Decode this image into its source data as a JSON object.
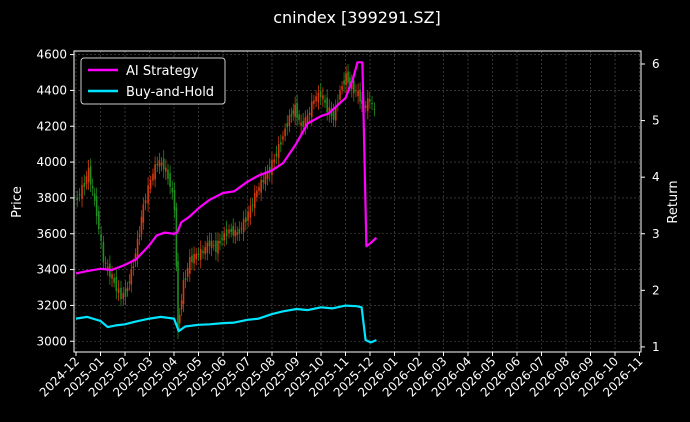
{
  "chart_data": {
    "type": "line",
    "title": "cnindex [399291.SZ]",
    "left_axis": {
      "label": "Price",
      "ylim": [
        2940,
        4620
      ],
      "ticks": [
        3000,
        3200,
        3400,
        3600,
        3800,
        4000,
        4200,
        4400,
        4600
      ]
    },
    "right_axis": {
      "label": "Return",
      "ylim": [
        0.91,
        6.23
      ],
      "ticks": [
        1,
        2,
        3,
        4,
        5,
        6
      ]
    },
    "x_axis": {
      "ticks": [
        "2024-12",
        "2025-01",
        "2025-02",
        "2025-03",
        "2025-04",
        "2025-05",
        "2025-06",
        "2025-07",
        "2025-08",
        "2025-09",
        "2025-10",
        "2025-11",
        "2025-12",
        "2026-01",
        "2026-02",
        "2026-03",
        "2026-04",
        "2026-05",
        "2026-06",
        "2026-07",
        "2026-08",
        "2026-09",
        "2026-10",
        "2026-11"
      ]
    },
    "grid": true,
    "legend_position": "top-left",
    "price_candles": {
      "axis": "left",
      "up_color": "#d43a10",
      "down_color": "#1f8f1f",
      "points": [
        [
          "2024-12-01",
          3780
        ],
        [
          "2024-12-10",
          3850
        ],
        [
          "2024-12-18",
          3950
        ],
        [
          "2024-12-28",
          3720
        ],
        [
          "2025-01-06",
          3450
        ],
        [
          "2025-01-14",
          3380
        ],
        [
          "2025-01-22",
          3300
        ],
        [
          "2025-01-28",
          3250
        ],
        [
          "2025-02-03",
          3270
        ],
        [
          "2025-02-10",
          3380
        ],
        [
          "2025-02-18",
          3550
        ],
        [
          "2025-02-25",
          3750
        ],
        [
          "2025-03-04",
          3900
        ],
        [
          "2025-03-12",
          4000
        ],
        [
          "2025-03-20",
          3980
        ],
        [
          "2025-03-28",
          3880
        ],
        [
          "2025-04-03",
          3750
        ],
        [
          "2025-04-07",
          3080
        ],
        [
          "2025-04-14",
          3320
        ],
        [
          "2025-04-22",
          3450
        ],
        [
          "2025-04-30",
          3480
        ],
        [
          "2025-05-08",
          3500
        ],
        [
          "2025-05-16",
          3550
        ],
        [
          "2025-05-24",
          3520
        ],
        [
          "2025-06-01",
          3580
        ],
        [
          "2025-06-10",
          3620
        ],
        [
          "2025-06-20",
          3600
        ],
        [
          "2025-06-28",
          3660
        ],
        [
          "2025-07-06",
          3740
        ],
        [
          "2025-07-14",
          3840
        ],
        [
          "2025-07-22",
          3900
        ],
        [
          "2025-07-30",
          3960
        ],
        [
          "2025-08-08",
          4050
        ],
        [
          "2025-08-16",
          4150
        ],
        [
          "2025-08-24",
          4250
        ],
        [
          "2025-08-31",
          4300
        ],
        [
          "2025-09-08",
          4200
        ],
        [
          "2025-09-16",
          4250
        ],
        [
          "2025-09-24",
          4350
        ],
        [
          "2025-10-02",
          4380
        ],
        [
          "2025-10-10",
          4300
        ],
        [
          "2025-10-18",
          4250
        ],
        [
          "2025-10-26",
          4400
        ],
        [
          "2025-11-03",
          4480
        ],
        [
          "2025-11-10",
          4420
        ],
        [
          "2025-11-18",
          4380
        ],
        [
          "2025-11-25",
          4300
        ],
        [
          "2025-12-02",
          4350
        ],
        [
          "2025-12-08",
          4280
        ]
      ]
    },
    "series": [
      {
        "name": "AI Strategy",
        "axis": "right",
        "color": "#ff00ff",
        "points": [
          [
            "2024-12-01",
            2.3
          ],
          [
            "2024-12-15",
            2.34
          ],
          [
            "2025-01-01",
            2.38
          ],
          [
            "2025-01-15",
            2.36
          ],
          [
            "2025-02-01",
            2.45
          ],
          [
            "2025-02-15",
            2.55
          ],
          [
            "2025-03-01",
            2.8
          ],
          [
            "2025-03-10",
            2.97
          ],
          [
            "2025-03-20",
            3.02
          ],
          [
            "2025-04-01",
            3.0
          ],
          [
            "2025-04-05",
            3.02
          ],
          [
            "2025-04-10",
            3.2
          ],
          [
            "2025-04-20",
            3.3
          ],
          [
            "2025-05-01",
            3.45
          ],
          [
            "2025-05-15",
            3.6
          ],
          [
            "2025-06-01",
            3.72
          ],
          [
            "2025-06-15",
            3.75
          ],
          [
            "2025-07-01",
            3.92
          ],
          [
            "2025-07-15",
            4.03
          ],
          [
            "2025-08-01",
            4.12
          ],
          [
            "2025-08-15",
            4.25
          ],
          [
            "2025-09-01",
            4.6
          ],
          [
            "2025-09-15",
            4.95
          ],
          [
            "2025-10-01",
            5.08
          ],
          [
            "2025-10-10",
            5.12
          ],
          [
            "2025-10-20",
            5.25
          ],
          [
            "2025-11-01",
            5.4
          ],
          [
            "2025-11-10",
            5.72
          ],
          [
            "2025-11-16",
            6.03
          ],
          [
            "2025-11-22",
            6.03
          ],
          [
            "2025-11-27",
            2.78
          ],
          [
            "2025-12-03",
            2.85
          ],
          [
            "2025-12-09",
            2.93
          ]
        ]
      },
      {
        "name": "Buy-and-Hold",
        "axis": "right",
        "color": "#00e5ff",
        "points": [
          [
            "2024-12-01",
            1.5
          ],
          [
            "2024-12-15",
            1.53
          ],
          [
            "2025-01-01",
            1.46
          ],
          [
            "2025-01-10",
            1.35
          ],
          [
            "2025-01-20",
            1.38
          ],
          [
            "2025-02-01",
            1.4
          ],
          [
            "2025-02-15",
            1.45
          ],
          [
            "2025-03-01",
            1.5
          ],
          [
            "2025-03-15",
            1.53
          ],
          [
            "2025-04-01",
            1.5
          ],
          [
            "2025-04-07",
            1.28
          ],
          [
            "2025-04-15",
            1.36
          ],
          [
            "2025-05-01",
            1.39
          ],
          [
            "2025-05-15",
            1.4
          ],
          [
            "2025-06-01",
            1.42
          ],
          [
            "2025-06-15",
            1.43
          ],
          [
            "2025-07-01",
            1.48
          ],
          [
            "2025-07-15",
            1.5
          ],
          [
            "2025-08-01",
            1.58
          ],
          [
            "2025-08-15",
            1.63
          ],
          [
            "2025-09-01",
            1.67
          ],
          [
            "2025-09-15",
            1.65
          ],
          [
            "2025-10-01",
            1.7
          ],
          [
            "2025-10-15",
            1.68
          ],
          [
            "2025-11-01",
            1.73
          ],
          [
            "2025-11-15",
            1.72
          ],
          [
            "2025-11-21",
            1.7
          ],
          [
            "2025-11-26",
            1.12
          ],
          [
            "2025-12-02",
            1.08
          ],
          [
            "2025-12-09",
            1.12
          ]
        ]
      }
    ]
  }
}
